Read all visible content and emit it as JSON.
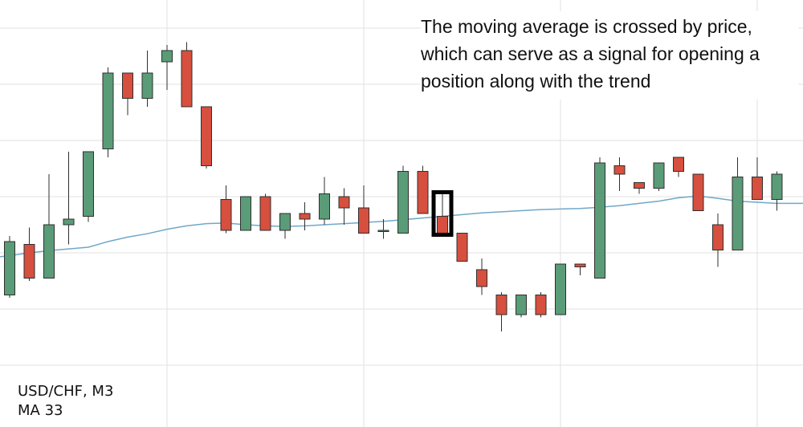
{
  "colors": {
    "background": "#ffffff",
    "grid": "#e2e2e2",
    "bullish": "#5a9c77",
    "bearish": "#d74f3e",
    "candle_outline": "#2f2f2f",
    "moving_average": "#6fa8c8",
    "highlight_box": "#000000"
  },
  "annotation": {
    "lines": [
      "The moving average is crossed by price,",
      "which can serve as a signal for opening a",
      "position along with the trend"
    ]
  },
  "info": {
    "symbol_label": "USD/CHF, M3",
    "indicator_label": "MA 33"
  },
  "chart_data": {
    "type": "candlestick",
    "title": "",
    "symbol": "USD/CHF",
    "timeframe": "M3",
    "indicator": {
      "type": "moving_average",
      "period": 33
    },
    "ylim": [
      -6.4,
      1.6
    ],
    "grid": true,
    "candles": [
      {
        "open": -4.75,
        "close": -3.8,
        "high": -3.7,
        "low": -4.8
      },
      {
        "open": -3.85,
        "close": -4.45,
        "high": -3.55,
        "low": -4.5
      },
      {
        "open": -4.45,
        "close": -3.5,
        "high": -2.6,
        "low": -4.45
      },
      {
        "open": -3.5,
        "close": -3.4,
        "high": -2.2,
        "low": -3.85
      },
      {
        "open": -3.35,
        "close": -2.2,
        "high": -2.2,
        "low": -3.45
      },
      {
        "open": -2.15,
        "close": -0.8,
        "high": -0.7,
        "low": -2.3
      },
      {
        "open": -0.8,
        "close": -1.25,
        "high": -0.8,
        "low": -1.55
      },
      {
        "open": -1.25,
        "close": -0.8,
        "high": -0.4,
        "low": -1.4
      },
      {
        "open": -0.6,
        "close": -0.4,
        "high": -0.3,
        "low": -1.1
      },
      {
        "open": -0.4,
        "close": -1.4,
        "high": -0.25,
        "low": -1.4
      },
      {
        "open": -1.4,
        "close": -2.45,
        "high": -1.4,
        "low": -2.5
      },
      {
        "open": -3.05,
        "close": -3.6,
        "high": -2.8,
        "low": -3.65
      },
      {
        "open": -3.6,
        "close": -3.0,
        "high": -3.0,
        "low": -3.6
      },
      {
        "open": -3.0,
        "close": -3.6,
        "high": -2.95,
        "low": -3.6
      },
      {
        "open": -3.6,
        "close": -3.3,
        "high": -3.3,
        "low": -3.75
      },
      {
        "open": -3.3,
        "close": -3.4,
        "high": -3.1,
        "low": -3.6
      },
      {
        "open": -3.4,
        "close": -2.95,
        "high": -2.65,
        "low": -3.5
      },
      {
        "open": -3.0,
        "close": -3.2,
        "high": -2.85,
        "low": -3.5
      },
      {
        "open": -3.2,
        "close": -3.65,
        "high": -2.8,
        "low": -3.65
      },
      {
        "open": -3.6,
        "close": -3.6,
        "high": -3.4,
        "low": -3.75
      },
      {
        "open": -3.65,
        "close": -2.55,
        "high": -2.45,
        "low": -3.65
      },
      {
        "open": -2.55,
        "close": -3.3,
        "high": -2.45,
        "low": -3.3
      },
      {
        "open": -3.35,
        "close": -3.65,
        "high": -2.95,
        "low": -3.65
      },
      {
        "open": -3.65,
        "close": -4.15,
        "high": -3.65,
        "low": -4.15
      },
      {
        "open": -4.3,
        "close": -4.6,
        "high": -4.1,
        "low": -4.75
      },
      {
        "open": -4.75,
        "close": -5.1,
        "high": -4.7,
        "low": -5.4
      },
      {
        "open": -5.1,
        "close": -4.75,
        "high": -4.75,
        "low": -5.15
      },
      {
        "open": -4.75,
        "close": -5.1,
        "high": -4.7,
        "low": -5.15
      },
      {
        "open": -5.1,
        "close": -4.2,
        "high": -4.2,
        "low": -5.1
      },
      {
        "open": -4.2,
        "close": -4.25,
        "high": -4.2,
        "low": -4.4
      },
      {
        "open": -4.45,
        "close": -2.4,
        "high": -2.3,
        "low": -4.45
      },
      {
        "open": -2.45,
        "close": -2.6,
        "high": -2.3,
        "low": -2.9
      },
      {
        "open": -2.75,
        "close": -2.85,
        "high": -2.75,
        "low": -2.95
      },
      {
        "open": -2.85,
        "close": -2.4,
        "high": -2.4,
        "low": -2.9
      },
      {
        "open": -2.3,
        "close": -2.55,
        "high": -2.3,
        "low": -2.65
      },
      {
        "open": -2.6,
        "close": -3.25,
        "high": -2.6,
        "low": -3.25
      },
      {
        "open": -3.5,
        "close": -3.95,
        "high": -3.3,
        "low": -4.25
      },
      {
        "open": -3.95,
        "close": -2.65,
        "high": -2.3,
        "low": -3.95
      },
      {
        "open": -2.65,
        "close": -3.05,
        "high": -2.3,
        "low": -3.05
      },
      {
        "open": -3.05,
        "close": -2.6,
        "high": -2.55,
        "low": -3.25
      }
    ],
    "moving_average": [
      -4.05,
      -4.0,
      -3.96,
      -3.93,
      -3.9,
      -3.8,
      -3.72,
      -3.66,
      -3.58,
      -3.52,
      -3.48,
      -3.47,
      -3.5,
      -3.52,
      -3.53,
      -3.52,
      -3.5,
      -3.48,
      -3.46,
      -3.44,
      -3.41,
      -3.38,
      -3.35,
      -3.32,
      -3.29,
      -3.27,
      -3.25,
      -3.23,
      -3.22,
      -3.21,
      -3.19,
      -3.16,
      -3.12,
      -3.08,
      -3.02,
      -2.99,
      -3.03,
      -3.08,
      -3.1,
      -3.12
    ],
    "highlight_candle_index": 22
  }
}
